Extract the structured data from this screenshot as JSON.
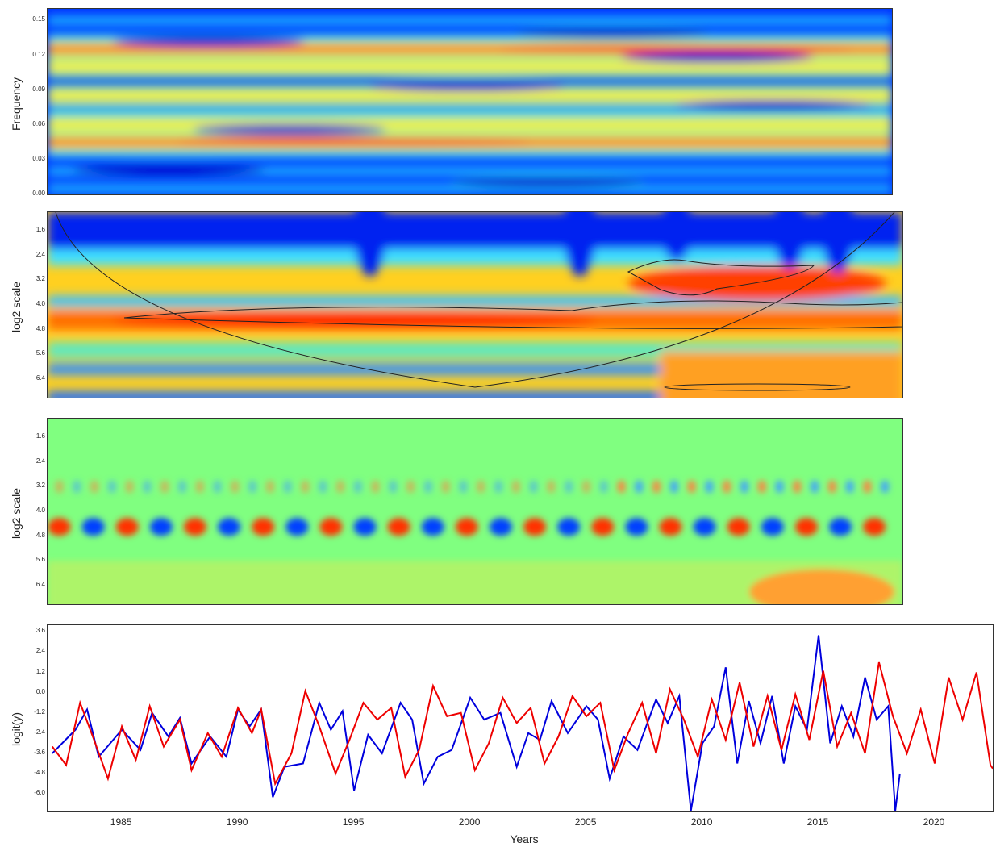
{
  "chart_data": [
    {
      "type": "heatmap",
      "ylabel": "Frequency",
      "yticks": [
        "0.00",
        "0.03",
        "0.06",
        "0.09",
        "0.12",
        "0.15"
      ],
      "ylim": [
        0.0,
        0.16
      ],
      "bands": [
        {
          "y": 0.125,
          "intensity": 0.75
        },
        {
          "y": 0.045,
          "intensity": 0.9
        },
        {
          "y": 0.06,
          "intensity": 0.55
        },
        {
          "y": 0.085,
          "intensity": 0.45
        },
        {
          "y": 0.11,
          "intensity": 0.35
        }
      ],
      "colors": [
        "#0000cc",
        "#0040ff",
        "#00c0ff",
        "#40ffc0",
        "#ffff40",
        "#ff8000",
        "#ff1000"
      ]
    },
    {
      "type": "heatmap",
      "ylabel": "log2 scale",
      "yticks": [
        "1.6",
        "2.4",
        "3.2",
        "4.0",
        "4.8",
        "5.6",
        "6.4"
      ],
      "ylim": [
        1.0,
        7.0
      ],
      "xlim": [
        1982,
        2018.5
      ],
      "bands": [
        {
          "y": 4.5,
          "intensity": 0.95
        },
        {
          "y": 3.2,
          "intensity": 0.5
        },
        {
          "y": 6.4,
          "intensity": 0.55
        }
      ]
    },
    {
      "type": "heatmap",
      "ylabel": "log2 scale",
      "yticks": [
        "1.6",
        "2.4",
        "3.2",
        "4.0",
        "4.8",
        "5.6",
        "6.4"
      ],
      "ylim": [
        1.0,
        7.0
      ],
      "xlim": [
        1982,
        2018.5
      ],
      "bands": [
        {
          "y": 4.5,
          "period": 2.9
        },
        {
          "y": 3.2,
          "period": 1.5
        }
      ]
    },
    {
      "type": "line",
      "xlabel": "Years",
      "ylabel": "logit(y)",
      "xticks": [
        "1985",
        "1990",
        "1995",
        "2000",
        "2005",
        "2010",
        "2015",
        "2020"
      ],
      "xlim": [
        1981.8,
        2022.5
      ],
      "yticks": [
        "3.6",
        "2.4",
        "1.2",
        "0.0",
        "-1.2",
        "-2.4",
        "-3.6",
        "-4.8",
        "-6.0"
      ],
      "ylim": [
        -7.0,
        4.0
      ],
      "series": [
        {
          "color": "#0000dd",
          "points": [
            [
              1982,
              -3.6
            ],
            [
              1983,
              -2.2
            ],
            [
              1983.5,
              -1.0
            ],
            [
              1984,
              -3.8
            ],
            [
              1985,
              -2.2
            ],
            [
              1985.8,
              -3.4
            ],
            [
              1986.3,
              -1.2
            ],
            [
              1987,
              -2.6
            ],
            [
              1987.5,
              -1.5
            ],
            [
              1988,
              -4.2
            ],
            [
              1988.8,
              -2.6
            ],
            [
              1989.5,
              -3.8
            ],
            [
              1990,
              -1.0
            ],
            [
              1990.5,
              -2.0
            ],
            [
              1991,
              -1.0
            ],
            [
              1991.5,
              -6.2
            ],
            [
              1992,
              -4.4
            ],
            [
              1992.8,
              -4.2
            ],
            [
              1993.5,
              -0.6
            ],
            [
              1994,
              -2.2
            ],
            [
              1994.5,
              -1.1
            ],
            [
              1995,
              -5.8
            ],
            [
              1995.6,
              -2.5
            ],
            [
              1996.2,
              -3.6
            ],
            [
              1997,
              -0.6
            ],
            [
              1997.5,
              -1.6
            ],
            [
              1998,
              -5.4
            ],
            [
              1998.6,
              -3.8
            ],
            [
              1999.2,
              -3.4
            ],
            [
              2000,
              -0.3
            ],
            [
              2000.6,
              -1.6
            ],
            [
              2001.3,
              -1.2
            ],
            [
              2002,
              -4.4
            ],
            [
              2002.5,
              -2.4
            ],
            [
              2003,
              -2.8
            ],
            [
              2003.5,
              -0.5
            ],
            [
              2004.2,
              -2.4
            ],
            [
              2005,
              -0.8
            ],
            [
              2005.5,
              -1.6
            ],
            [
              2006,
              -5.1
            ],
            [
              2006.6,
              -2.6
            ],
            [
              2007.2,
              -3.4
            ],
            [
              2008,
              -0.4
            ],
            [
              2008.5,
              -1.8
            ],
            [
              2009,
              -0.2
            ],
            [
              2009.5,
              -7.0
            ],
            [
              2010,
              -3.0
            ],
            [
              2010.5,
              -2.0
            ],
            [
              2011,
              1.5
            ],
            [
              2011.5,
              -4.2
            ],
            [
              2012,
              -0.5
            ],
            [
              2012.5,
              -3.0
            ],
            [
              2013,
              -0.2
            ],
            [
              2013.5,
              -4.2
            ],
            [
              2014,
              -0.8
            ],
            [
              2014.5,
              -2.2
            ],
            [
              2015,
              3.4
            ],
            [
              2015.5,
              -3.0
            ],
            [
              2016,
              -0.8
            ],
            [
              2016.5,
              -2.6
            ],
            [
              2017,
              0.9
            ],
            [
              2017.5,
              -1.6
            ],
            [
              2018,
              -0.8
            ],
            [
              2018.3,
              -7.0
            ],
            [
              2018.5,
              -4.8
            ]
          ]
        },
        {
          "color": "#ee0000",
          "points": [
            [
              1982,
              -3.2
            ],
            [
              1982.6,
              -4.3
            ],
            [
              1983.2,
              -0.6
            ],
            [
              1983.8,
              -2.8
            ],
            [
              1984.4,
              -5.1
            ],
            [
              1985,
              -2.0
            ],
            [
              1985.6,
              -4.0
            ],
            [
              1986.2,
              -0.8
            ],
            [
              1986.8,
              -3.2
            ],
            [
              1987.5,
              -1.6
            ],
            [
              1988,
              -4.6
            ],
            [
              1988.7,
              -2.4
            ],
            [
              1989.3,
              -3.8
            ],
            [
              1990,
              -0.9
            ],
            [
              1990.6,
              -2.4
            ],
            [
              1991,
              -1.0
            ],
            [
              1991.6,
              -5.4
            ],
            [
              1992.3,
              -3.6
            ],
            [
              1992.9,
              0.1
            ],
            [
              1993.5,
              -2.0
            ],
            [
              1994.2,
              -4.8
            ],
            [
              1994.8,
              -2.8
            ],
            [
              1995.4,
              -0.6
            ],
            [
              1996,
              -1.6
            ],
            [
              1996.6,
              -0.9
            ],
            [
              1997.2,
              -5.0
            ],
            [
              1997.8,
              -3.4
            ],
            [
              1998.4,
              0.4
            ],
            [
              1999,
              -1.4
            ],
            [
              1999.6,
              -1.2
            ],
            [
              2000.2,
              -4.6
            ],
            [
              2000.8,
              -3.0
            ],
            [
              2001.4,
              -0.3
            ],
            [
              2002,
              -1.8
            ],
            [
              2002.6,
              -0.9
            ],
            [
              2003.2,
              -4.2
            ],
            [
              2003.8,
              -2.6
            ],
            [
              2004.4,
              -0.2
            ],
            [
              2005,
              -1.4
            ],
            [
              2005.6,
              -0.6
            ],
            [
              2006.2,
              -4.6
            ],
            [
              2006.8,
              -2.4
            ],
            [
              2007.4,
              -0.6
            ],
            [
              2008,
              -3.6
            ],
            [
              2008.6,
              0.2
            ],
            [
              2009.2,
              -1.6
            ],
            [
              2009.8,
              -3.8
            ],
            [
              2010.4,
              -0.4
            ],
            [
              2011,
              -2.8
            ],
            [
              2011.6,
              0.6
            ],
            [
              2012.2,
              -3.2
            ],
            [
              2012.8,
              -0.2
            ],
            [
              2013.4,
              -3.4
            ],
            [
              2014,
              -0.1
            ],
            [
              2014.6,
              -2.8
            ],
            [
              2015.2,
              1.3
            ],
            [
              2015.8,
              -3.2
            ],
            [
              2016.4,
              -1.2
            ],
            [
              2017,
              -3.6
            ],
            [
              2017.6,
              1.8
            ],
            [
              2018.2,
              -1.4
            ],
            [
              2018.8,
              -3.6
            ],
            [
              2019.4,
              -1.0
            ],
            [
              2020,
              -4.2
            ],
            [
              2020.6,
              0.9
            ],
            [
              2021.2,
              -1.6
            ],
            [
              2021.8,
              1.2
            ],
            [
              2022.4,
              -4.3
            ],
            [
              2022.5,
              -4.5
            ]
          ]
        }
      ]
    }
  ]
}
